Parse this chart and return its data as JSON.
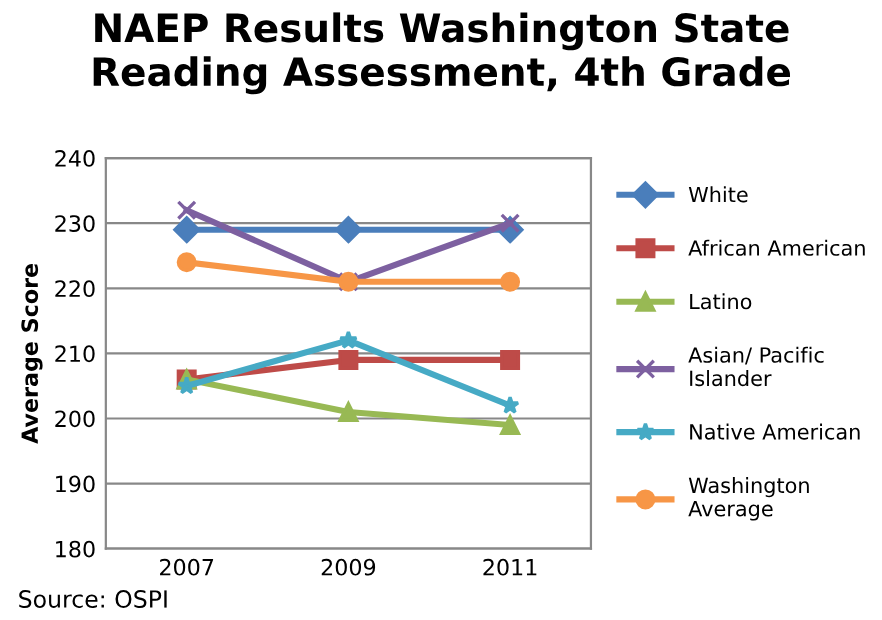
{
  "chart_data": {
    "type": "line",
    "title": "NAEP Results Washington State\nReading Assessment, 4th Grade",
    "ylabel": "Average Score",
    "categories": [
      "2007",
      "2009",
      "2011"
    ],
    "series": [
      {
        "name": "White",
        "color": "#4a7ebb",
        "marker": "diamond",
        "values": [
          229,
          229,
          229
        ]
      },
      {
        "name": "African American",
        "color": "#be4b48",
        "marker": "square",
        "values": [
          206,
          209,
          209
        ]
      },
      {
        "name": "Latino",
        "color": "#98b954",
        "marker": "triangle",
        "values": [
          206,
          201,
          199
        ]
      },
      {
        "name": "Asian/ Pacific Islander",
        "color": "#7d60a0",
        "marker": "cross",
        "values": [
          232,
          221,
          230
        ]
      },
      {
        "name": "Native American",
        "color": "#46aac5",
        "marker": "star",
        "values": [
          205,
          212,
          202
        ]
      },
      {
        "name": "Washington Average",
        "color": "#f79646",
        "marker": "circle",
        "values": [
          224,
          221,
          221
        ]
      }
    ],
    "ylim": [
      180,
      240
    ],
    "yticks": [
      180,
      190,
      200,
      210,
      220,
      230,
      240
    ],
    "grid": "y",
    "legend": "right",
    "annotations": [
      "Source: OSPI"
    ]
  }
}
